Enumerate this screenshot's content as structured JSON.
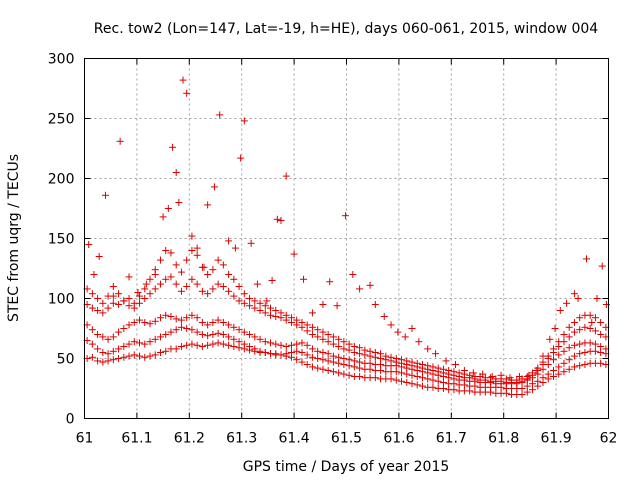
{
  "chart_data": {
    "type": "scatter",
    "title": "Rec. tow2 (Lon=147, Lat=-19, h=HE), days 060-061, 2015, window 004",
    "xlabel": "GPS time / Days of year 2015",
    "ylabel": "STEC from uqrg / TECUs",
    "xlim": [
      61,
      62
    ],
    "ylim": [
      0,
      300
    ],
    "x_ticks": [
      "61",
      "61.1",
      "61.2",
      "61.3",
      "61.4",
      "61.5",
      "61.6",
      "61.7",
      "61.8",
      "61.9",
      "62"
    ],
    "y_ticks": [
      "0",
      "50",
      "100",
      "150",
      "200",
      "250",
      "300"
    ],
    "grid": true,
    "marker": "+",
    "color": "#e00000",
    "series": [
      {
        "x": [
          61.005,
          61.015,
          61.025,
          61.035,
          61.045,
          61.055,
          61.065,
          61.075,
          61.085,
          61.095,
          61.105,
          61.115,
          61.125,
          61.135,
          61.145,
          61.155,
          61.165,
          61.175,
          61.185,
          61.195,
          61.205,
          61.215,
          61.225,
          61.235,
          61.245,
          61.255,
          61.265,
          61.275,
          61.285,
          61.295,
          61.305,
          61.315,
          61.325,
          61.335,
          61.345,
          61.355,
          61.365,
          61.375,
          61.385,
          61.395,
          61.405,
          61.415,
          61.425,
          61.435,
          61.445,
          61.455,
          61.465,
          61.475,
          61.485,
          61.495,
          61.505,
          61.515,
          61.525,
          61.535,
          61.545,
          61.555,
          61.565,
          61.575,
          61.585,
          61.595,
          61.605,
          61.615,
          61.625,
          61.635,
          61.645,
          61.655,
          61.665,
          61.675,
          61.685,
          61.695,
          61.705,
          61.715,
          61.725,
          61.735,
          61.745,
          61.755,
          61.765,
          61.775,
          61.785,
          61.795,
          61.805,
          61.815,
          61.825,
          61.835,
          61.845,
          61.855,
          61.865,
          61.875,
          61.885,
          61.895,
          61.905,
          61.915,
          61.925,
          61.935,
          61.945,
          61.955,
          61.965,
          61.975,
          61.985,
          61.995
        ],
        "y": [
          50,
          51,
          48,
          47,
          48,
          49,
          50,
          51,
          52,
          53,
          52,
          51,
          52,
          53,
          55,
          56,
          58,
          58,
          60,
          61,
          62,
          61,
          60,
          61,
          62,
          63,
          62,
          61,
          60,
          59,
          58,
          57,
          56,
          55,
          55,
          54,
          53,
          53,
          52,
          51,
          49,
          47,
          45,
          43,
          42,
          41,
          40,
          39,
          38,
          37,
          36,
          35,
          35,
          34,
          34,
          34,
          33,
          33,
          33,
          32,
          31,
          30,
          29,
          28,
          27,
          26,
          26,
          25,
          25,
          24,
          24,
          23,
          23,
          23,
          22,
          22,
          22,
          22,
          21,
          21,
          21,
          20,
          20,
          20,
          22,
          24,
          27,
          30,
          33,
          35,
          37,
          39,
          41,
          43,
          44,
          45,
          46,
          46,
          46,
          45
        ]
      },
      {
        "x": [
          61.005,
          61.015,
          61.025,
          61.035,
          61.045,
          61.055,
          61.065,
          61.075,
          61.085,
          61.095,
          61.105,
          61.115,
          61.125,
          61.135,
          61.145,
          61.155,
          61.165,
          61.175,
          61.185,
          61.195,
          61.205,
          61.215,
          61.225,
          61.235,
          61.245,
          61.255,
          61.265,
          61.275,
          61.285,
          61.295,
          61.305,
          61.315,
          61.325,
          61.335,
          61.345,
          61.355,
          61.365,
          61.375,
          61.385,
          61.395,
          61.405,
          61.415,
          61.425,
          61.435,
          61.445,
          61.455,
          61.465,
          61.475,
          61.485,
          61.495,
          61.505,
          61.515,
          61.525,
          61.535,
          61.545,
          61.555,
          61.565,
          61.575,
          61.585,
          61.595,
          61.605,
          61.615,
          61.625,
          61.635,
          61.645,
          61.655,
          61.665,
          61.675,
          61.685,
          61.695,
          61.705,
          61.715,
          61.725,
          61.735,
          61.745,
          61.755,
          61.765,
          61.775,
          61.785,
          61.795,
          61.805,
          61.815,
          61.825,
          61.835,
          61.845,
          61.855,
          61.865,
          61.875,
          61.885,
          61.895,
          61.905,
          61.915,
          61.925,
          61.935,
          61.945,
          61.955,
          61.965,
          61.975,
          61.985,
          61.995
        ],
        "y": [
          65,
          62,
          58,
          55,
          54,
          56,
          58,
          60,
          62,
          64,
          63,
          62,
          64,
          66,
          68,
          70,
          72,
          74,
          76,
          75,
          74,
          72,
          70,
          69,
          70,
          71,
          70,
          68,
          66,
          64,
          62,
          60,
          58,
          56,
          55,
          54,
          54,
          53,
          54,
          55,
          56,
          55,
          53,
          51,
          50,
          49,
          48,
          47,
          46,
          45,
          44,
          43,
          42,
          41,
          41,
          40,
          40,
          39,
          39,
          39,
          38,
          37,
          36,
          35,
          34,
          33,
          32,
          31,
          30,
          29,
          29,
          28,
          28,
          27,
          27,
          26,
          26,
          26,
          26,
          26,
          25,
          25,
          25,
          25,
          27,
          29,
          31,
          34,
          37,
          40,
          43,
          46,
          49,
          52,
          54,
          55,
          56,
          56,
          55,
          54
        ]
      },
      {
        "x": [
          61.005,
          61.015,
          61.025,
          61.035,
          61.045,
          61.055,
          61.065,
          61.075,
          61.085,
          61.095,
          61.105,
          61.115,
          61.125,
          61.135,
          61.145,
          61.155,
          61.165,
          61.175,
          61.185,
          61.195,
          61.205,
          61.215,
          61.225,
          61.235,
          61.245,
          61.255,
          61.265,
          61.275,
          61.285,
          61.295,
          61.305,
          61.315,
          61.325,
          61.335,
          61.345,
          61.355,
          61.365,
          61.375,
          61.385,
          61.395,
          61.405,
          61.415,
          61.425,
          61.435,
          61.445,
          61.455,
          61.465,
          61.475,
          61.485,
          61.495,
          61.505,
          61.515,
          61.525,
          61.535,
          61.545,
          61.555,
          61.565,
          61.575,
          61.585,
          61.595,
          61.605,
          61.615,
          61.625,
          61.635,
          61.645,
          61.655,
          61.665,
          61.675,
          61.685,
          61.695,
          61.705,
          61.715,
          61.725,
          61.735,
          61.745,
          61.755,
          61.765,
          61.775,
          61.785,
          61.795,
          61.805,
          61.815,
          61.825,
          61.835,
          61.845,
          61.855,
          61.865,
          61.875,
          61.885,
          61.895,
          61.905,
          61.915,
          61.925,
          61.935,
          61.945,
          61.955,
          61.965,
          61.975,
          61.985,
          61.995
        ],
        "y": [
          78,
          74,
          70,
          68,
          66,
          68,
          72,
          75,
          78,
          80,
          82,
          80,
          79,
          81,
          84,
          86,
          85,
          83,
          82,
          84,
          86,
          84,
          80,
          78,
          80,
          82,
          80,
          78,
          76,
          74,
          72,
          70,
          68,
          66,
          64,
          63,
          62,
          61,
          60,
          61,
          62,
          63,
          61,
          58,
          56,
          55,
          54,
          52,
          51,
          50,
          49,
          48,
          47,
          46,
          46,
          45,
          45,
          44,
          44,
          44,
          43,
          42,
          41,
          40,
          39,
          38,
          37,
          36,
          35,
          34,
          33,
          32,
          32,
          31,
          31,
          30,
          30,
          30,
          29,
          29,
          29,
          29,
          29,
          30,
          32,
          34,
          37,
          41,
          45,
          49,
          53,
          56,
          59,
          61,
          62,
          63,
          63,
          62,
          60,
          58
        ]
      },
      {
        "x": [
          61.005,
          61.015,
          61.025,
          61.035,
          61.045,
          61.055,
          61.065,
          61.075,
          61.085,
          61.095,
          61.105,
          61.115,
          61.125,
          61.135,
          61.145,
          61.155,
          61.165,
          61.175,
          61.185,
          61.195,
          61.205,
          61.215,
          61.225,
          61.235,
          61.245,
          61.255,
          61.265,
          61.275,
          61.285,
          61.295,
          61.305,
          61.315,
          61.325,
          61.335,
          61.345,
          61.355,
          61.365,
          61.375,
          61.385,
          61.395,
          61.405,
          61.415,
          61.425,
          61.435,
          61.445,
          61.455,
          61.465,
          61.475,
          61.485,
          61.495,
          61.505,
          61.515,
          61.525,
          61.535,
          61.545,
          61.555,
          61.565,
          61.575,
          61.585,
          61.595,
          61.605,
          61.615,
          61.625,
          61.635,
          61.645,
          61.655,
          61.665,
          61.675,
          61.685,
          61.695,
          61.705,
          61.715,
          61.725,
          61.735,
          61.745,
          61.755,
          61.765,
          61.775,
          61.785,
          61.795,
          61.805,
          61.815,
          61.825,
          61.835,
          61.845,
          61.855,
          61.865,
          61.875,
          61.885,
          61.895,
          61.905,
          61.915,
          61.925,
          61.935,
          61.945,
          61.955,
          61.965,
          61.975,
          61.985,
          61.995
        ],
        "y": [
          95,
          92,
          90,
          88,
          92,
          96,
          95,
          98,
          94,
          92,
          96,
          100,
          104,
          108,
          112,
          116,
          118,
          112,
          106,
          110,
          116,
          112,
          106,
          104,
          108,
          112,
          110,
          106,
          102,
          98,
          96,
          94,
          92,
          90,
          88,
          86,
          85,
          84,
          82,
          80,
          78,
          76,
          73,
          70,
          68,
          66,
          64,
          62,
          60,
          58,
          57,
          55,
          54,
          53,
          52,
          51,
          50,
          49,
          48,
          47,
          46,
          45,
          44,
          43,
          42,
          41,
          40,
          39,
          38,
          37,
          36,
          35,
          34,
          34,
          33,
          32,
          32,
          31,
          31,
          31,
          30,
          30,
          30,
          31,
          33,
          36,
          40,
          45,
          50,
          55,
          60,
          64,
          68,
          72,
          74,
          76,
          75,
          73,
          70,
          68
        ]
      },
      {
        "x": [
          61.005,
          61.015,
          61.025,
          61.035,
          61.045,
          61.055,
          61.065,
          61.075,
          61.085,
          61.095,
          61.105,
          61.115,
          61.125,
          61.135,
          61.145,
          61.155,
          61.165,
          61.175,
          61.185,
          61.195,
          61.205,
          61.215,
          61.225,
          61.235,
          61.245,
          61.255,
          61.265,
          61.275,
          61.285,
          61.295,
          61.305,
          61.315,
          61.325,
          61.335,
          61.345,
          61.355,
          61.365,
          61.375,
          61.385,
          61.395,
          61.405,
          61.415,
          61.425,
          61.435,
          61.445,
          61.455,
          61.465,
          61.475,
          61.485,
          61.495,
          61.505,
          61.515,
          61.525,
          61.535,
          61.545,
          61.555,
          61.565,
          61.575,
          61.585,
          61.595,
          61.605,
          61.615,
          61.625,
          61.635,
          61.645,
          61.655,
          61.665,
          61.675,
          61.685,
          61.695,
          61.705,
          61.715,
          61.725,
          61.735,
          61.745,
          61.755,
          61.765,
          61.775,
          61.785,
          61.795,
          61.805,
          61.815,
          61.825,
          61.835,
          61.845,
          61.855,
          61.865,
          61.875,
          61.885,
          61.895,
          61.905,
          61.915,
          61.925,
          61.935,
          61.945,
          61.955,
          61.965,
          61.975,
          61.985,
          61.995
        ],
        "y": [
          108,
          104,
          100,
          96,
          102,
          110,
          104,
          98,
          100,
          96,
          102,
          108,
          116,
          124,
          132,
          140,
          138,
          128,
          122,
          132,
          140,
          136,
          126,
          120,
          124,
          132,
          128,
          120,
          116,
          110,
          104,
          100,
          98,
          96,
          94,
          92,
          90,
          88,
          86,
          84,
          82,
          80,
          78,
          76,
          74,
          72,
          70,
          68,
          66,
          64,
          62,
          60,
          59,
          57,
          56,
          55,
          54,
          52,
          51,
          50,
          49,
          48,
          47,
          46,
          45,
          44,
          43,
          42,
          41,
          40,
          39,
          38,
          37,
          36,
          35,
          35,
          34,
          34,
          33,
          33,
          33,
          32,
          32,
          33,
          35,
          38,
          42,
          47,
          52,
          58,
          64,
          70,
          76,
          80,
          84,
          86,
          86,
          84,
          80,
          76
        ]
      },
      {
        "x": [
          61.008,
          61.018,
          61.028,
          61.04,
          61.055,
          61.068,
          61.085,
          61.102,
          61.118,
          61.135,
          61.15,
          61.16,
          61.168,
          61.175,
          61.18,
          61.188,
          61.195,
          61.205,
          61.215,
          61.228,
          61.235,
          61.248,
          61.258,
          61.275,
          61.288,
          61.298,
          61.305,
          61.318,
          61.33,
          61.348,
          61.358,
          61.368,
          61.375,
          61.385,
          61.4,
          61.418,
          61.435,
          61.455,
          61.468,
          61.482,
          61.498,
          61.512,
          61.525,
          61.545,
          61.555,
          61.572,
          61.585,
          61.598,
          61.612,
          61.625,
          61.638,
          61.655,
          61.67,
          61.69,
          61.708,
          61.725,
          61.742,
          61.76,
          61.778,
          61.795,
          61.812,
          61.83,
          61.848,
          61.862,
          61.875,
          61.888,
          61.898,
          61.908,
          61.92,
          61.935,
          61.942,
          61.958,
          61.968,
          61.978,
          61.988,
          61.996
        ],
        "y": [
          145,
          120,
          135,
          186,
          102,
          231,
          118,
          105,
          112,
          120,
          168,
          175,
          226,
          205,
          180,
          282,
          271,
          152,
          142,
          126,
          178,
          193,
          253,
          148,
          142,
          217,
          248,
          146,
          112,
          98,
          115,
          166,
          165,
          202,
          137,
          116,
          88,
          95,
          114,
          94,
          169,
          120,
          108,
          111,
          95,
          85,
          78,
          72,
          68,
          75,
          64,
          58,
          54,
          48,
          45,
          40,
          38,
          37,
          35,
          36,
          34,
          35,
          36,
          40,
          52,
          66,
          75,
          90,
          96,
          104,
          100,
          133,
          80,
          100,
          127,
          95
        ]
      }
    ]
  }
}
